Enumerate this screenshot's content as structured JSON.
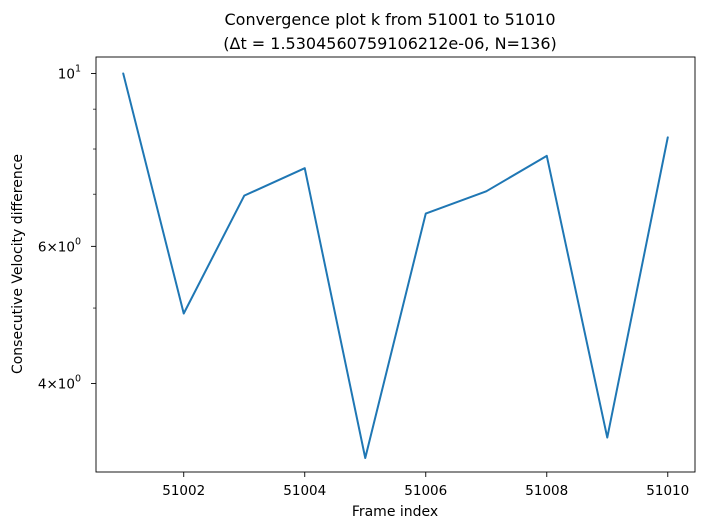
{
  "title_line1": "Convergence plot k from 51001 to 51010",
  "title_line2": "(Δt = 1.5304560759106212e-06, N=136)",
  "chart_data": {
    "type": "line",
    "title": "Convergence plot k from 51001 to 51010 (Δt = 1.5304560759106212e-06, N=136)",
    "xlabel": "Frame index",
    "ylabel": "Consecutive Velocity difference",
    "yscale": "log",
    "xlim": [
      51000.55,
      51010.45
    ],
    "ylim": [
      3.08,
      10.5
    ],
    "grid": false,
    "x": [
      51001,
      51002,
      51003,
      51004,
      51005,
      51006,
      51007,
      51008,
      51009,
      51010
    ],
    "series": [
      {
        "values": [
          10.0,
          4.92,
          6.97,
          7.56,
          3.21,
          6.61,
          7.06,
          7.84,
          3.41,
          8.28
        ],
        "color": "#1f77b4"
      }
    ],
    "xticks": [
      51002,
      51004,
      51006,
      51008,
      51010
    ],
    "xtick_labels": [
      "51002",
      "51004",
      "51006",
      "51008",
      "51010"
    ],
    "yticks_major": [
      {
        "value": 10,
        "base": "10",
        "exp": "1"
      },
      {
        "value": 6,
        "base": "6×10",
        "exp": "0"
      },
      {
        "value": 4,
        "base": "4×10",
        "exp": "0"
      }
    ],
    "yticks_minor": [
      5,
      7,
      8,
      9,
      3
    ]
  }
}
